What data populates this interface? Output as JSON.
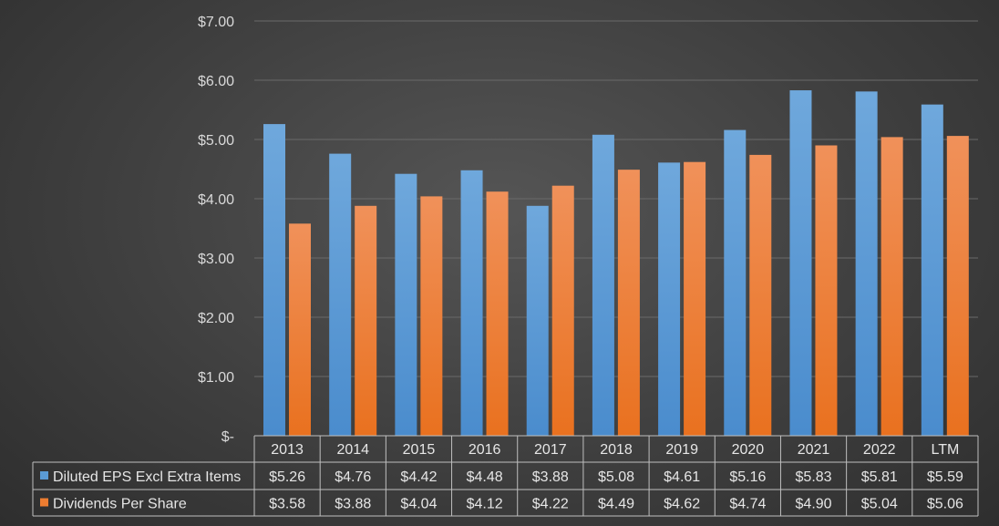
{
  "chart_data": {
    "type": "bar",
    "categories": [
      "2013",
      "2014",
      "2015",
      "2016",
      "2017",
      "2018",
      "2019",
      "2020",
      "2021",
      "2022",
      "LTM"
    ],
    "series": [
      {
        "name": "Diluted EPS Excl Extra Items",
        "color": "#5b9bd5",
        "values": [
          5.26,
          4.76,
          4.42,
          4.48,
          3.88,
          5.08,
          4.61,
          5.16,
          5.83,
          5.81,
          5.59
        ],
        "labels": [
          "$5.26",
          "$4.76",
          "$4.42",
          "$4.48",
          "$3.88",
          "$5.08",
          "$4.61",
          "$5.16",
          "$5.83",
          "$5.81",
          "$5.59"
        ]
      },
      {
        "name": "Dividends Per Share",
        "color": "#ed7d31",
        "values": [
          3.58,
          3.88,
          4.04,
          4.12,
          4.22,
          4.49,
          4.62,
          4.74,
          4.9,
          5.04,
          5.06
        ],
        "labels": [
          "$3.58",
          "$3.88",
          "$4.04",
          "$4.12",
          "$4.22",
          "$4.49",
          "$4.62",
          "$4.74",
          "$4.90",
          "$5.04",
          "$5.06"
        ]
      }
    ],
    "yticks": [
      0,
      1,
      2,
      3,
      4,
      5,
      6,
      7
    ],
    "ytick_labels": [
      "$-",
      "$1.00",
      "$2.00",
      "$3.00",
      "$4.00",
      "$5.00",
      "$6.00",
      "$7.00"
    ],
    "ylim": [
      0,
      7
    ],
    "grid": true,
    "legend": "data-table-left",
    "title": "",
    "xlabel": "",
    "ylabel": ""
  }
}
